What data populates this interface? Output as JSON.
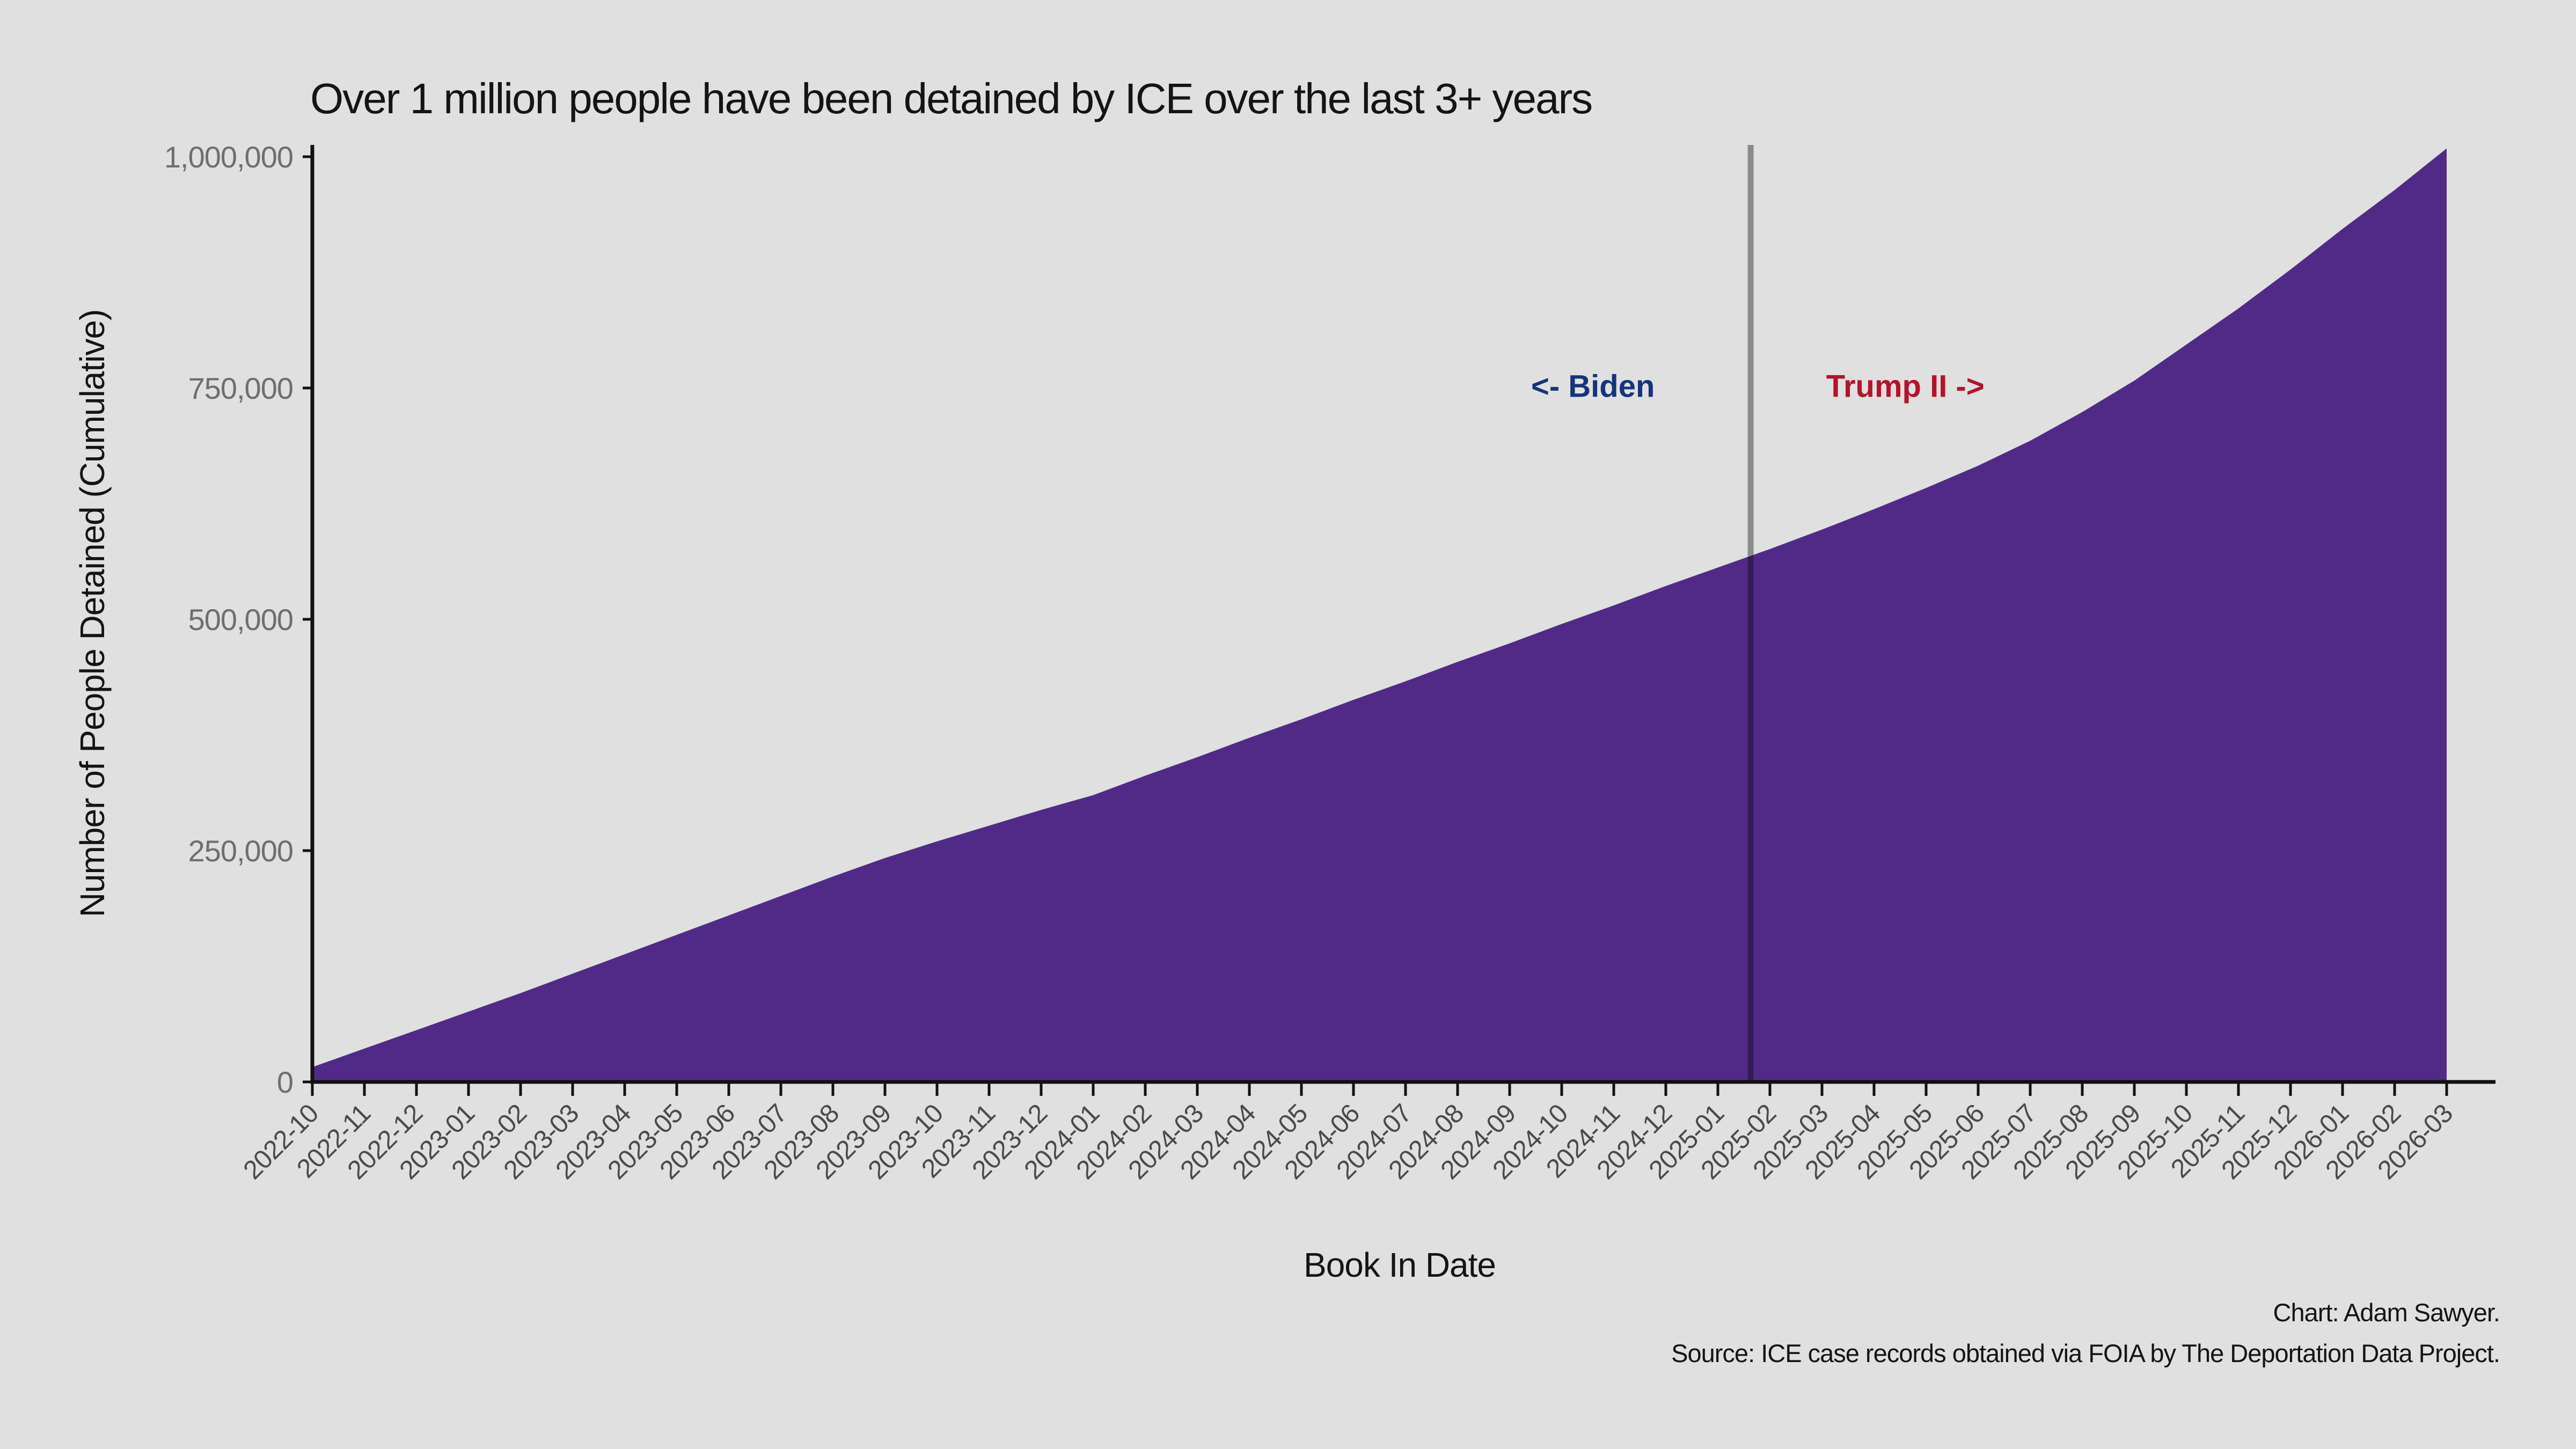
{
  "chart_data": {
    "type": "area",
    "title": "Over 1 million people have been detained by ICE over the last 3+ years",
    "xlabel": "Book In Date",
    "ylabel": "Number of People Detained (Cumulative)",
    "categories": [
      "2022-10",
      "2022-11",
      "2022-12",
      "2023-01",
      "2023-02",
      "2023-03",
      "2023-04",
      "2023-05",
      "2023-06",
      "2023-07",
      "2023-08",
      "2023-09",
      "2023-10",
      "2023-11",
      "2023-12",
      "2024-01",
      "2024-02",
      "2024-03",
      "2024-04",
      "2024-05",
      "2024-06",
      "2024-07",
      "2024-08",
      "2024-09",
      "2024-10",
      "2024-11",
      "2024-12",
      "2025-01",
      "2025-02",
      "2025-03",
      "2025-04",
      "2025-05",
      "2025-06",
      "2025-07",
      "2025-08",
      "2025-09",
      "2025-10",
      "2025-11",
      "2025-12",
      "2026-01",
      "2026-02",
      "2026-03"
    ],
    "values": [
      16000,
      36000,
      56000,
      76000,
      96000,
      117000,
      138000,
      159000,
      180000,
      201000,
      222000,
      242000,
      260000,
      277000,
      294000,
      310000,
      331000,
      351000,
      372000,
      392000,
      413000,
      433000,
      454000,
      474000,
      495000,
      515000,
      536000,
      556000,
      576000,
      597000,
      619000,
      642000,
      666000,
      693000,
      724000,
      758000,
      797000,
      836000,
      878000,
      922000,
      964000,
      1009000
    ],
    "yticks": [
      {
        "value": 0,
        "label": "0"
      },
      {
        "value": 250000,
        "label": "250,000"
      },
      {
        "value": 500000,
        "label": "500,000"
      },
      {
        "value": 750000,
        "label": "750,000"
      },
      {
        "value": 1000000,
        "label": "1,000,000"
      }
    ],
    "ylim": [
      0,
      1012500
    ],
    "grid": false,
    "legend": "none",
    "vline": {
      "month_index": 27.63,
      "meaning": "Inauguration (between Biden and Trump II)"
    },
    "annotations": [
      {
        "text": "<- Biden",
        "color": "#17337B",
        "month_index": 24.6,
        "value": 752000
      },
      {
        "text": "Trump II ->",
        "color": "#B5122B",
        "month_index": 30.6,
        "value": 752000
      }
    ]
  },
  "credits": {
    "line1": "Chart: Adam Sawyer.",
    "line2": "Source: ICE case records obtained via FOIA by The Deportation Data Project."
  },
  "colors": {
    "background": "#E0E0E0",
    "area": "#512A87",
    "axis": "#111111",
    "ytick_label": "#6E6E6E",
    "xtick_label": "#4A4A4A",
    "vline": "#A0A0A0",
    "text": "#141414"
  }
}
